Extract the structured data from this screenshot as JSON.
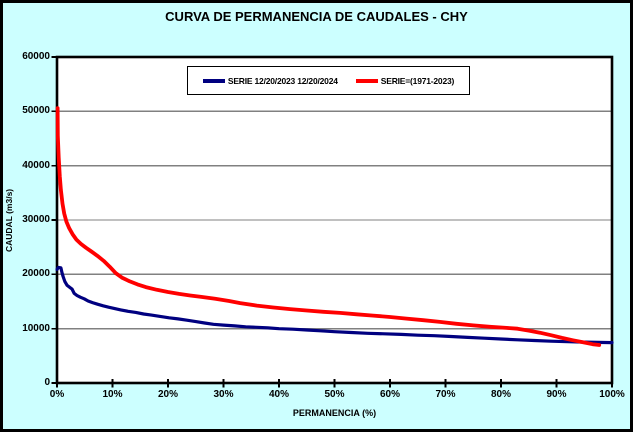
{
  "chart_data": {
    "type": "line",
    "title": "CURVA DE PERMANENCIA DE CAUDALES - CHY",
    "xlabel": "PERMANENCIA (%)",
    "ylabel": "CAUDAL (m3/s)",
    "xlim": [
      0,
      100
    ],
    "ylim": [
      0,
      60000
    ],
    "x_tick_values": [
      0,
      10,
      20,
      30,
      40,
      50,
      60,
      70,
      80,
      90,
      100
    ],
    "x_tick_labels": [
      "0%",
      "10%",
      "20%",
      "30%",
      "40%",
      "50%",
      "60%",
      "70%",
      "80%",
      "90%",
      "100%"
    ],
    "y_tick_values": [
      0,
      10000,
      20000,
      30000,
      40000,
      50000,
      60000
    ],
    "y_tick_labels": [
      "0",
      "10000",
      "20000",
      "30000",
      "40000",
      "50000",
      "60000"
    ],
    "grid": "horizontal",
    "legend_position": "top-center-inside",
    "series": [
      {
        "name": "SERIE 12/20/2023 12/20/2024",
        "color": "#000080",
        "points": [
          [
            0,
            20900
          ],
          [
            0.25,
            21250
          ],
          [
            0.7,
            21200
          ],
          [
            0.9,
            20300
          ],
          [
            1.1,
            19600
          ],
          [
            1.4,
            18700
          ],
          [
            1.8,
            18000
          ],
          [
            2.3,
            17600
          ],
          [
            2.7,
            17300
          ],
          [
            3.1,
            16500
          ],
          [
            3.6,
            16100
          ],
          [
            4.2,
            15800
          ],
          [
            4.9,
            15500
          ],
          [
            5.6,
            15100
          ],
          [
            6.4,
            14800
          ],
          [
            7.3,
            14500
          ],
          [
            8.3,
            14200
          ],
          [
            9.3,
            13950
          ],
          [
            10.4,
            13700
          ],
          [
            11.5,
            13450
          ],
          [
            12.8,
            13200
          ],
          [
            14.2,
            13000
          ],
          [
            15.6,
            12700
          ],
          [
            17,
            12500
          ],
          [
            18.6,
            12250
          ],
          [
            20.2,
            12000
          ],
          [
            21.8,
            11800
          ],
          [
            23.4,
            11550
          ],
          [
            25,
            11300
          ],
          [
            26.6,
            11050
          ],
          [
            28.2,
            10800
          ],
          [
            30,
            10650
          ],
          [
            32,
            10500
          ],
          [
            34,
            10350
          ],
          [
            36,
            10250
          ],
          [
            38,
            10150
          ],
          [
            40,
            10000
          ],
          [
            42.5,
            9900
          ],
          [
            45,
            9750
          ],
          [
            47.5,
            9600
          ],
          [
            50,
            9450
          ],
          [
            53,
            9300
          ],
          [
            56,
            9150
          ],
          [
            59,
            9050
          ],
          [
            62,
            8950
          ],
          [
            65,
            8800
          ],
          [
            68,
            8700
          ],
          [
            71,
            8550
          ],
          [
            74,
            8400
          ],
          [
            77,
            8250
          ],
          [
            80,
            8100
          ],
          [
            83,
            7950
          ],
          [
            86,
            7820
          ],
          [
            89,
            7700
          ],
          [
            92,
            7600
          ],
          [
            95,
            7520
          ],
          [
            97.5,
            7470
          ],
          [
            100,
            7430
          ]
        ]
      },
      {
        "name": "SERIE=(1971-2023)",
        "color": "#FF0000",
        "points": [
          [
            0.1,
            50600
          ],
          [
            0.15,
            45500
          ],
          [
            0.3,
            41500
          ],
          [
            0.5,
            38000
          ],
          [
            0.7,
            35500
          ],
          [
            1,
            33000
          ],
          [
            1.3,
            31200
          ],
          [
            1.7,
            29700
          ],
          [
            2.2,
            28500
          ],
          [
            2.8,
            27400
          ],
          [
            3.5,
            26400
          ],
          [
            4.3,
            25600
          ],
          [
            5.2,
            24900
          ],
          [
            6.2,
            24200
          ],
          [
            7.3,
            23400
          ],
          [
            8.4,
            22500
          ],
          [
            9.5,
            21400
          ],
          [
            10.6,
            20200
          ],
          [
            11.7,
            19400
          ],
          [
            13,
            18750
          ],
          [
            14.5,
            18150
          ],
          [
            16,
            17650
          ],
          [
            18,
            17150
          ],
          [
            20,
            16750
          ],
          [
            22,
            16400
          ],
          [
            24,
            16100
          ],
          [
            26,
            15850
          ],
          [
            28.5,
            15500
          ],
          [
            31,
            15100
          ],
          [
            33,
            14700
          ],
          [
            36,
            14250
          ],
          [
            39,
            13900
          ],
          [
            42,
            13600
          ],
          [
            45,
            13350
          ],
          [
            48,
            13100
          ],
          [
            51,
            12900
          ],
          [
            54,
            12650
          ],
          [
            57,
            12400
          ],
          [
            60,
            12150
          ],
          [
            63,
            11850
          ],
          [
            66,
            11550
          ],
          [
            69,
            11250
          ],
          [
            72,
            10900
          ],
          [
            75,
            10600
          ],
          [
            78,
            10350
          ],
          [
            81,
            10150
          ],
          [
            83,
            10000
          ],
          [
            85,
            9650
          ],
          [
            87,
            9250
          ],
          [
            89,
            8800
          ],
          [
            91,
            8300
          ],
          [
            93,
            7850
          ],
          [
            95,
            7450
          ],
          [
            96.5,
            7150
          ],
          [
            97.7,
            7000
          ]
        ]
      }
    ]
  },
  "colors": {
    "background": "#CCFFFF",
    "plot_bg": "#FFFFFF",
    "grid": "#808080",
    "border": "#000000"
  }
}
